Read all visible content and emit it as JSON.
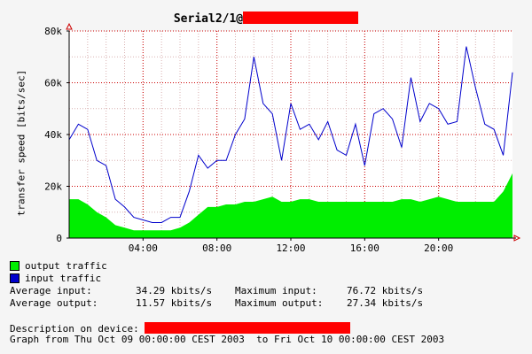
{
  "title": {
    "text": "Serial2/1@",
    "redaction_color": "#ff0000"
  },
  "colors": {
    "background": "#f5f5f5",
    "plot_background": "#ffffff",
    "grid_major": "#cc0000",
    "grid_minor": "#d8b0b0",
    "output_fill": "#00ee00",
    "input_line": "#0000cc",
    "axis_arrow": "#cc0000",
    "redaction": "#ff0000"
  },
  "chart_data": {
    "type": "area",
    "xlabel": "",
    "ylabel": "transfer speed [bits/sec]",
    "x_ticks": [
      "04:00",
      "08:00",
      "12:00",
      "16:00",
      "20:00"
    ],
    "x_tick_hours": [
      4,
      8,
      12,
      16,
      20
    ],
    "y_ticks": [
      "0",
      "20k",
      "40k",
      "60k",
      "80k"
    ],
    "y_tick_values": [
      0,
      20000,
      40000,
      60000,
      80000
    ],
    "xlim_hours": [
      0,
      24
    ],
    "ylim": [
      0,
      80000
    ],
    "grid": true,
    "x_hours": [
      0,
      0.5,
      1,
      1.5,
      2,
      2.5,
      3,
      3.5,
      4,
      4.5,
      5,
      5.5,
      6,
      6.5,
      7,
      7.5,
      8,
      8.5,
      9,
      9.5,
      10,
      10.5,
      11,
      11.5,
      12,
      12.5,
      13,
      13.5,
      14,
      14.5,
      15,
      15.5,
      16,
      16.5,
      17,
      17.5,
      18,
      18.5,
      19,
      19.5,
      20,
      20.5,
      21,
      21.5,
      22,
      22.5,
      23,
      23.5,
      24
    ],
    "series": [
      {
        "name": "output traffic",
        "style": "filled",
        "color": "#00ee00",
        "values": [
          15000,
          15000,
          13000,
          10000,
          8000,
          5000,
          4000,
          3000,
          3000,
          3000,
          3000,
          3000,
          4000,
          6000,
          9000,
          12000,
          12000,
          13000,
          13000,
          14000,
          14000,
          15000,
          16000,
          14000,
          14000,
          15000,
          15000,
          14000,
          14000,
          14000,
          14000,
          14000,
          14000,
          14000,
          14000,
          14000,
          15000,
          15000,
          14000,
          15000,
          16000,
          15000,
          14000,
          14000,
          14000,
          14000,
          14000,
          18000,
          25000
        ]
      },
      {
        "name": "input traffic",
        "style": "line",
        "color": "#0000cc",
        "values": [
          38000,
          44000,
          42000,
          30000,
          28000,
          15000,
          12000,
          8000,
          7000,
          6000,
          6000,
          8000,
          8000,
          18000,
          32000,
          27000,
          30000,
          30000,
          40000,
          46000,
          70000,
          52000,
          48000,
          30000,
          52000,
          42000,
          44000,
          38000,
          45000,
          34000,
          32000,
          44000,
          28000,
          48000,
          50000,
          46000,
          35000,
          62000,
          45000,
          52000,
          50000,
          44000,
          45000,
          74000,
          58000,
          44000,
          42000,
          32000,
          64000
        ]
      }
    ]
  },
  "legend": {
    "output_label": "output traffic",
    "input_label": "input traffic"
  },
  "stats": {
    "avg_input_label": "Average input:",
    "avg_input_value": "34.29 kbits/s",
    "max_input_label": "Maximum input:",
    "max_input_value": "76.72 kbits/s",
    "avg_output_label": "Average output:",
    "avg_output_value": "11.57 kbits/s",
    "max_output_label": "Maximum output:",
    "max_output_value": "27.34 kbits/s"
  },
  "description": {
    "label": "Description on device:"
  },
  "graph_range": {
    "text": "Graph from Thu Oct 09 00:00:00 CEST 2003  to Fri Oct 10 00:00:00 CEST 2003"
  }
}
